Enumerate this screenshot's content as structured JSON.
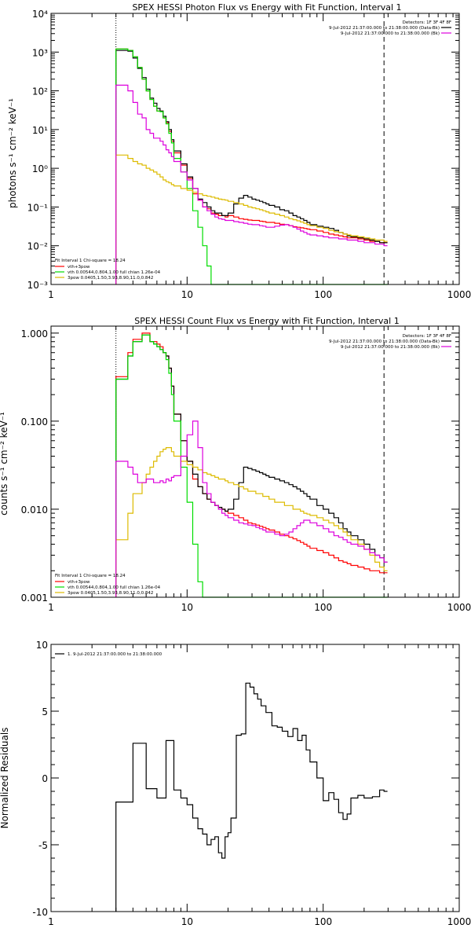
{
  "colors": {
    "total": "#000000",
    "vth_3pow": "#ff0000",
    "vth": "#00dd00",
    "pow": "#ddbb00",
    "bk": "#dd00dd"
  },
  "top": {
    "title": "SPEX HESSI Photon Flux vs Energy with Fit Function, Interval 1",
    "ylabel": "photons s⁻¹ cm⁻² keV⁻¹",
    "ytick_labels": [
      "10⁻³",
      "10⁻²",
      "10⁻¹",
      "10⁰",
      "10¹",
      "10²",
      "10³",
      "10⁴"
    ],
    "xtick_labels": [
      "1",
      "10",
      "100",
      "1000"
    ],
    "legend_tr": [
      "Detectors: 1F 3F 4F 8F",
      "9-Jul-2012 21:37:00.000 to 21:38:00.000 (Data-Bk)",
      "9-Jul-2012 21:37:00.000 to 21:38:00.000 (Bk)"
    ],
    "legend_bl": [
      "Fit Interval 1   Chi-square = 18.24",
      "vth+3pow",
      "vth 0.00544,0.804,1.00  full chian 1.26e-04",
      "3pow 0.0405,1.50,3.93,8.90,11.0,0.842"
    ]
  },
  "middle": {
    "title": "SPEX HESSI Count Flux vs Energy with Fit Function, Interval 1",
    "ylabel": "counts s⁻¹ cm⁻² keV⁻¹",
    "ytick_labels": [
      "0.001",
      "0.010",
      "0.100",
      "1.000"
    ],
    "xtick_labels": [
      "1",
      "10",
      "100",
      "1000"
    ],
    "legend_tr": [
      "Detectors: 1F 3F 4F 8F",
      "9-Jul-2012 21:37:00.000 to 21:38:00.000 (Data-Bk)",
      "9-Jul-2012 21:37:00.000 to 21:38:00.000 (Bk)"
    ],
    "legend_bl": [
      "Fit Interval 1   Chi-square = 18.24",
      "vth+3pow",
      "vth 0.00544,0.804,1.00  full chian 1.26e-04",
      "3pow 0.0405,1.50,3.93,8.90,11.0,0.842"
    ]
  },
  "bottom": {
    "ylabel": "Normalized Residuals",
    "ytick_labels": [
      "-10",
      "-5",
      "0",
      "5",
      "10"
    ],
    "xtick_labels": [
      "1",
      "10",
      "100",
      "1000"
    ],
    "legend": "1.  9-Jul-2012 21:37:00.000 to 21:38:00.000"
  },
  "chart_data": [
    {
      "type": "line",
      "title": "SPEX HESSI Photon Flux vs Energy with Fit Function, Interval 1",
      "xscale": "log",
      "yscale": "log",
      "xlim": [
        1,
        1000
      ],
      "ylim": [
        0.001,
        10000
      ],
      "vlines": [
        3,
        280
      ],
      "x": [
        3,
        3.33,
        3.67,
        4,
        4.33,
        4.67,
        5,
        5.33,
        5.67,
        6,
        6.33,
        6.67,
        7,
        7.33,
        7.67,
        8,
        9,
        10,
        11,
        12,
        13,
        14,
        15,
        16,
        17,
        18,
        19,
        20,
        22,
        24,
        26,
        28,
        30,
        32,
        34,
        36,
        38,
        40,
        44,
        48,
        52,
        56,
        60,
        64,
        68,
        72,
        76,
        80,
        90,
        100,
        110,
        120,
        130,
        140,
        150,
        160,
        180,
        200,
        220,
        240,
        260,
        280
      ],
      "series": [
        {
          "name": "vth+3pow",
          "color_key": "vth_3pow",
          "values": [
            1200,
            1200,
            1100,
            750,
            400,
            200,
            100,
            60,
            40,
            30,
            30,
            20,
            15,
            9,
            5,
            2.5,
            1.2,
            0.55,
            0.22,
            0.15,
            0.1,
            0.09,
            0.07,
            0.065,
            0.06,
            0.06,
            0.055,
            0.06,
            0.055,
            0.05,
            0.048,
            0.046,
            0.045,
            0.045,
            0.043,
            0.042,
            0.04,
            0.04,
            0.038,
            0.036,
            0.035,
            0.033,
            0.031,
            0.03,
            0.029,
            0.028,
            0.027,
            0.026,
            0.024,
            0.022,
            0.02,
            0.019,
            0.018,
            0.017,
            0.016,
            0.016,
            0.015,
            0.014,
            0.013,
            0.013,
            0.012,
            0.012
          ]
        },
        {
          "name": "Data-Bk",
          "color_key": "total",
          "values": [
            1100,
            1100,
            1050,
            700,
            380,
            220,
            110,
            65,
            48,
            35,
            30,
            22,
            16,
            10,
            5.5,
            2.8,
            1.3,
            0.6,
            0.3,
            0.16,
            0.13,
            0.1,
            0.08,
            0.07,
            0.07,
            0.06,
            0.06,
            0.07,
            0.12,
            0.17,
            0.2,
            0.18,
            0.16,
            0.15,
            0.14,
            0.13,
            0.12,
            0.11,
            0.1,
            0.085,
            0.08,
            0.07,
            0.06,
            0.055,
            0.05,
            0.045,
            0.04,
            0.035,
            0.032,
            0.03,
            0.028,
            0.025,
            0.022,
            0.02,
            0.018,
            0.017,
            0.016,
            0.015,
            0.014,
            0.013,
            0.012,
            0.012
          ]
        },
        {
          "name": "vth",
          "color_key": "vth",
          "values": [
            1200,
            1200,
            1100,
            750,
            400,
            200,
            100,
            60,
            40,
            30,
            29,
            20,
            14,
            8,
            4.5,
            1.8,
            0.8,
            0.3,
            0.08,
            0.03,
            0.01,
            0.003,
            0.001,
            0.001,
            0.001,
            0.001,
            0.001,
            0.001,
            0.001,
            0.001,
            0.001,
            0.001,
            0.001,
            0.001,
            0.001,
            0.001,
            0.001,
            0.001,
            0.001,
            0.001,
            0.001,
            0.001,
            0.001,
            0.001,
            0.001,
            0.001,
            0.001,
            0.001,
            0.001,
            0.001,
            0.001,
            0.001,
            0.001,
            0.001,
            0.001,
            0.001,
            0.001,
            0.001,
            0.001,
            0.001,
            0.001,
            0.001
          ]
        },
        {
          "name": "3pow",
          "color_key": "pow",
          "values": [
            2.2,
            2.2,
            1.8,
            1.5,
            1.3,
            1.2,
            1.0,
            0.9,
            0.8,
            0.7,
            0.6,
            0.5,
            0.45,
            0.42,
            0.38,
            0.35,
            0.3,
            0.27,
            0.24,
            0.22,
            0.2,
            0.19,
            0.18,
            0.17,
            0.16,
            0.155,
            0.15,
            0.14,
            0.13,
            0.12,
            0.11,
            0.1,
            0.095,
            0.09,
            0.085,
            0.08,
            0.075,
            0.07,
            0.065,
            0.06,
            0.055,
            0.05,
            0.047,
            0.044,
            0.041,
            0.038,
            0.035,
            0.033,
            0.03,
            0.028,
            0.025,
            0.023,
            0.022,
            0.02,
            0.019,
            0.018,
            0.017,
            0.016,
            0.015,
            0.014,
            0.014,
            0.013
          ]
        },
        {
          "name": "Bk",
          "color_key": "bk",
          "values": [
            140,
            140,
            100,
            50,
            25,
            20,
            10,
            8,
            6,
            6,
            5,
            4,
            3,
            2.5,
            2,
            1.5,
            0.8,
            0.5,
            0.3,
            0.15,
            0.1,
            0.08,
            0.065,
            0.055,
            0.05,
            0.048,
            0.045,
            0.045,
            0.042,
            0.04,
            0.038,
            0.036,
            0.035,
            0.035,
            0.033,
            0.032,
            0.03,
            0.03,
            0.032,
            0.034,
            0.035,
            0.033,
            0.03,
            0.027,
            0.024,
            0.022,
            0.02,
            0.019,
            0.018,
            0.017,
            0.016,
            0.016,
            0.015,
            0.015,
            0.014,
            0.014,
            0.013,
            0.012,
            0.012,
            0.011,
            0.011,
            0.01
          ]
        }
      ]
    },
    {
      "type": "line",
      "title": "SPEX HESSI Count Flux vs Energy with Fit Function, Interval 1",
      "xscale": "log",
      "yscale": "log",
      "xlim": [
        1,
        1000
      ],
      "ylim": [
        0.001,
        1.2
      ],
      "vlines": [
        3,
        280
      ],
      "x": [
        3,
        3.33,
        3.67,
        4,
        4.33,
        4.67,
        5,
        5.33,
        5.67,
        6,
        6.33,
        6.67,
        7,
        7.33,
        7.67,
        8,
        9,
        10,
        11,
        12,
        13,
        14,
        15,
        16,
        17,
        18,
        19,
        20,
        22,
        24,
        26,
        28,
        30,
        32,
        34,
        36,
        38,
        40,
        44,
        48,
        52,
        56,
        60,
        64,
        68,
        72,
        76,
        80,
        90,
        100,
        110,
        120,
        130,
        140,
        150,
        160,
        180,
        200,
        220,
        240,
        260,
        280
      ],
      "series": [
        {
          "name": "vth+3pow",
          "color_key": "vth_3pow",
          "values": [
            0.32,
            0.32,
            0.6,
            0.85,
            0.85,
            1.0,
            1.0,
            0.8,
            0.8,
            0.75,
            0.7,
            0.6,
            0.55,
            0.4,
            0.25,
            0.12,
            0.06,
            0.035,
            0.022,
            0.018,
            0.015,
            0.013,
            0.012,
            0.011,
            0.0105,
            0.01,
            0.0095,
            0.009,
            0.0085,
            0.008,
            0.0075,
            0.007,
            0.0068,
            0.0066,
            0.0064,
            0.0062,
            0.006,
            0.0058,
            0.0055,
            0.0052,
            0.005,
            0.0048,
            0.0046,
            0.0044,
            0.0042,
            0.004,
            0.0038,
            0.0036,
            0.0034,
            0.0032,
            0.003,
            0.0028,
            0.0026,
            0.0025,
            0.0024,
            0.0023,
            0.0022,
            0.0021,
            0.002,
            0.002,
            0.0019,
            0.0019
          ]
        },
        {
          "name": "Data-Bk",
          "color_key": "total",
          "values": [
            0.3,
            0.3,
            0.55,
            0.8,
            0.8,
            0.95,
            0.95,
            0.8,
            0.75,
            0.7,
            0.65,
            0.6,
            0.55,
            0.4,
            0.25,
            0.12,
            0.06,
            0.035,
            0.025,
            0.018,
            0.015,
            0.013,
            0.012,
            0.011,
            0.0105,
            0.01,
            0.0095,
            0.01,
            0.013,
            0.02,
            0.03,
            0.029,
            0.028,
            0.027,
            0.026,
            0.025,
            0.024,
            0.023,
            0.022,
            0.021,
            0.02,
            0.019,
            0.018,
            0.017,
            0.016,
            0.015,
            0.014,
            0.013,
            0.011,
            0.01,
            0.009,
            0.008,
            0.007,
            0.006,
            0.0055,
            0.005,
            0.0045,
            0.004,
            0.0035,
            0.003,
            0.0028,
            0.0025
          ]
        },
        {
          "name": "vth",
          "color_key": "vth",
          "values": [
            0.3,
            0.3,
            0.55,
            0.8,
            0.8,
            0.95,
            0.95,
            0.8,
            0.75,
            0.7,
            0.65,
            0.6,
            0.5,
            0.35,
            0.2,
            0.1,
            0.03,
            0.012,
            0.004,
            0.0015,
            0.001,
            0.001,
            0.001,
            0.001,
            0.001,
            0.001,
            0.001,
            0.001,
            0.001,
            0.001,
            0.001,
            0.001,
            0.001,
            0.001,
            0.001,
            0.001,
            0.001,
            0.001,
            0.001,
            0.001,
            0.001,
            0.001,
            0.001,
            0.001,
            0.001,
            0.001,
            0.001,
            0.001,
            0.001,
            0.001,
            0.001,
            0.001,
            0.001,
            0.001,
            0.001,
            0.001,
            0.001,
            0.001,
            0.001,
            0.001,
            0.001,
            0.001
          ]
        },
        {
          "name": "3pow",
          "color_key": "pow",
          "values": [
            0.0045,
            0.0045,
            0.009,
            0.015,
            0.015,
            0.02,
            0.025,
            0.03,
            0.035,
            0.04,
            0.045,
            0.048,
            0.05,
            0.05,
            0.045,
            0.04,
            0.035,
            0.032,
            0.03,
            0.028,
            0.026,
            0.025,
            0.024,
            0.023,
            0.022,
            0.022,
            0.021,
            0.02,
            0.019,
            0.018,
            0.017,
            0.016,
            0.016,
            0.015,
            0.015,
            0.014,
            0.014,
            0.013,
            0.012,
            0.012,
            0.011,
            0.011,
            0.01,
            0.01,
            0.0095,
            0.009,
            0.0088,
            0.0085,
            0.008,
            0.0075,
            0.007,
            0.0065,
            0.006,
            0.0055,
            0.005,
            0.0045,
            0.004,
            0.0035,
            0.003,
            0.0025,
            0.0022,
            0.002
          ]
        },
        {
          "name": "Bk",
          "color_key": "bk",
          "values": [
            0.035,
            0.035,
            0.03,
            0.025,
            0.02,
            0.02,
            0.022,
            0.022,
            0.02,
            0.02,
            0.021,
            0.02,
            0.022,
            0.021,
            0.023,
            0.024,
            0.04,
            0.07,
            0.1,
            0.05,
            0.02,
            0.015,
            0.012,
            0.011,
            0.01,
            0.009,
            0.0085,
            0.008,
            0.0075,
            0.007,
            0.0068,
            0.0066,
            0.0065,
            0.0062,
            0.006,
            0.0058,
            0.0055,
            0.0055,
            0.0052,
            0.005,
            0.0052,
            0.0055,
            0.006,
            0.0065,
            0.007,
            0.0075,
            0.0075,
            0.007,
            0.0065,
            0.006,
            0.0055,
            0.005,
            0.0048,
            0.0045,
            0.0042,
            0.004,
            0.0038,
            0.0035,
            0.0032,
            0.003,
            0.0028,
            0.0025
          ]
        }
      ]
    },
    {
      "type": "line",
      "xscale": "log",
      "xlim": [
        1,
        1000
      ],
      "ylim": [
        -10,
        10
      ],
      "ylabel": "Normalized Residuals",
      "series": [
        {
          "name": "1.  9-Jul-2012 21:37:00.000 to 21:38:00.000",
          "color_key": "total",
          "x": [
            3,
            4,
            4.5,
            5,
            5.5,
            6,
            6.5,
            7,
            7.5,
            8,
            9,
            10,
            11,
            12,
            13,
            14,
            15,
            16,
            17,
            18,
            19,
            20,
            21,
            23,
            25,
            27,
            29,
            31,
            33,
            35,
            38,
            42,
            46,
            50,
            55,
            60,
            65,
            70,
            75,
            80,
            90,
            100,
            110,
            120,
            130,
            140,
            150,
            160,
            180,
            200,
            230,
            260,
            280
          ],
          "values": [
            -1.8,
            2.6,
            2.6,
            -0.8,
            -0.8,
            -1.5,
            -1.5,
            2.8,
            2.8,
            -0.9,
            -1.5,
            -2.0,
            -3.0,
            -3.8,
            -4.2,
            -5.0,
            -4.6,
            -4.4,
            -5.6,
            -6.0,
            -4.4,
            -4.1,
            -3.0,
            3.2,
            3.3,
            7.1,
            6.8,
            6.3,
            5.9,
            5.4,
            4.9,
            3.9,
            3.8,
            3.5,
            3.1,
            3.7,
            2.8,
            3.2,
            2.1,
            1.2,
            0.0,
            -1.7,
            -1.1,
            -1.6,
            -2.6,
            -3.1,
            -2.7,
            -1.5,
            -1.3,
            -1.5,
            -1.4,
            -0.9,
            -1.0
          ]
        }
      ]
    }
  ]
}
